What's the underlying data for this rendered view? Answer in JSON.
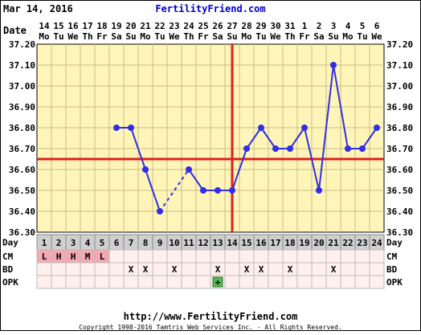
{
  "header": {
    "date": "Mar 14, 2016",
    "site": "FertilityFriend.com"
  },
  "footer": {
    "url": "http://www.FertilityFriend.com",
    "copyright": "Copyright 1998-2016 Tamtris Web Services Inc. - All Rights Reserved."
  },
  "row_labels": {
    "date": "Date",
    "day": "Day",
    "cm": "CM",
    "bd": "BD",
    "opk": "OPK"
  },
  "colors": {
    "plot_bg": "#fff5b8",
    "grid": "#c9bf86",
    "line": "#2f2fe6",
    "coverline": "#dd2020",
    "ovulation": "#dd2020",
    "day_bg": "#cfcfcf",
    "cm_bg": "#f4a9b1",
    "table_bg": "#fff0ed",
    "opk_positive": "#58b858"
  },
  "chart_data": {
    "type": "line",
    "ylim": [
      36.3,
      37.2
    ],
    "yticks": [
      "36.30",
      "36.40",
      "36.50",
      "36.60",
      "36.70",
      "36.80",
      "36.90",
      "37.00",
      "37.10",
      "37.20"
    ],
    "grid": true,
    "dates": [
      "14",
      "15",
      "16",
      "17",
      "18",
      "19",
      "20",
      "21",
      "22",
      "23",
      "24",
      "25",
      "26",
      "27",
      "28",
      "29",
      "30",
      "31",
      "1",
      "2",
      "3",
      "4",
      "5",
      "6"
    ],
    "weekdays": [
      "Mo",
      "Tu",
      "We",
      "Th",
      "Fr",
      "Sa",
      "Su",
      "Mo",
      "Tu",
      "We",
      "Th",
      "Fr",
      "Sa",
      "Su",
      "Mo",
      "Tu",
      "We",
      "Th",
      "Fr",
      "Sa",
      "Su",
      "Mo",
      "Tu",
      "We"
    ],
    "days": [
      "1",
      "2",
      "3",
      "4",
      "5",
      "6",
      "7",
      "8",
      "9",
      "10",
      "11",
      "12",
      "13",
      "14",
      "15",
      "16",
      "17",
      "18",
      "19",
      "20",
      "21",
      "22",
      "23",
      "24"
    ],
    "temps": [
      null,
      null,
      null,
      null,
      null,
      36.8,
      36.8,
      36.6,
      36.4,
      null,
      36.6,
      36.5,
      36.5,
      36.5,
      36.7,
      36.8,
      36.7,
      36.7,
      36.8,
      36.5,
      37.1,
      36.7,
      36.7,
      36.8
    ],
    "coverline": 36.65,
    "ovulation_day": 14,
    "cm": [
      "L",
      "H",
      "H",
      "M",
      "L",
      "",
      "",
      "",
      "",
      "",
      "",
      "",
      "",
      "",
      "",
      "",
      "",
      "",
      "",
      "",
      "",
      "",
      "",
      ""
    ],
    "bd": [
      "",
      "",
      "",
      "",
      "",
      "",
      "X",
      "X",
      "",
      "X",
      "",
      "",
      "X",
      "",
      "X",
      "X",
      "",
      "X",
      "",
      "",
      "X",
      "",
      "",
      ""
    ],
    "opk": [
      "",
      "",
      "",
      "",
      "",
      "",
      "",
      "",
      "",
      "",
      "",
      "",
      "+",
      "",
      "",
      "",
      "",
      "",
      "",
      "",
      "",
      "",
      "",
      ""
    ]
  }
}
